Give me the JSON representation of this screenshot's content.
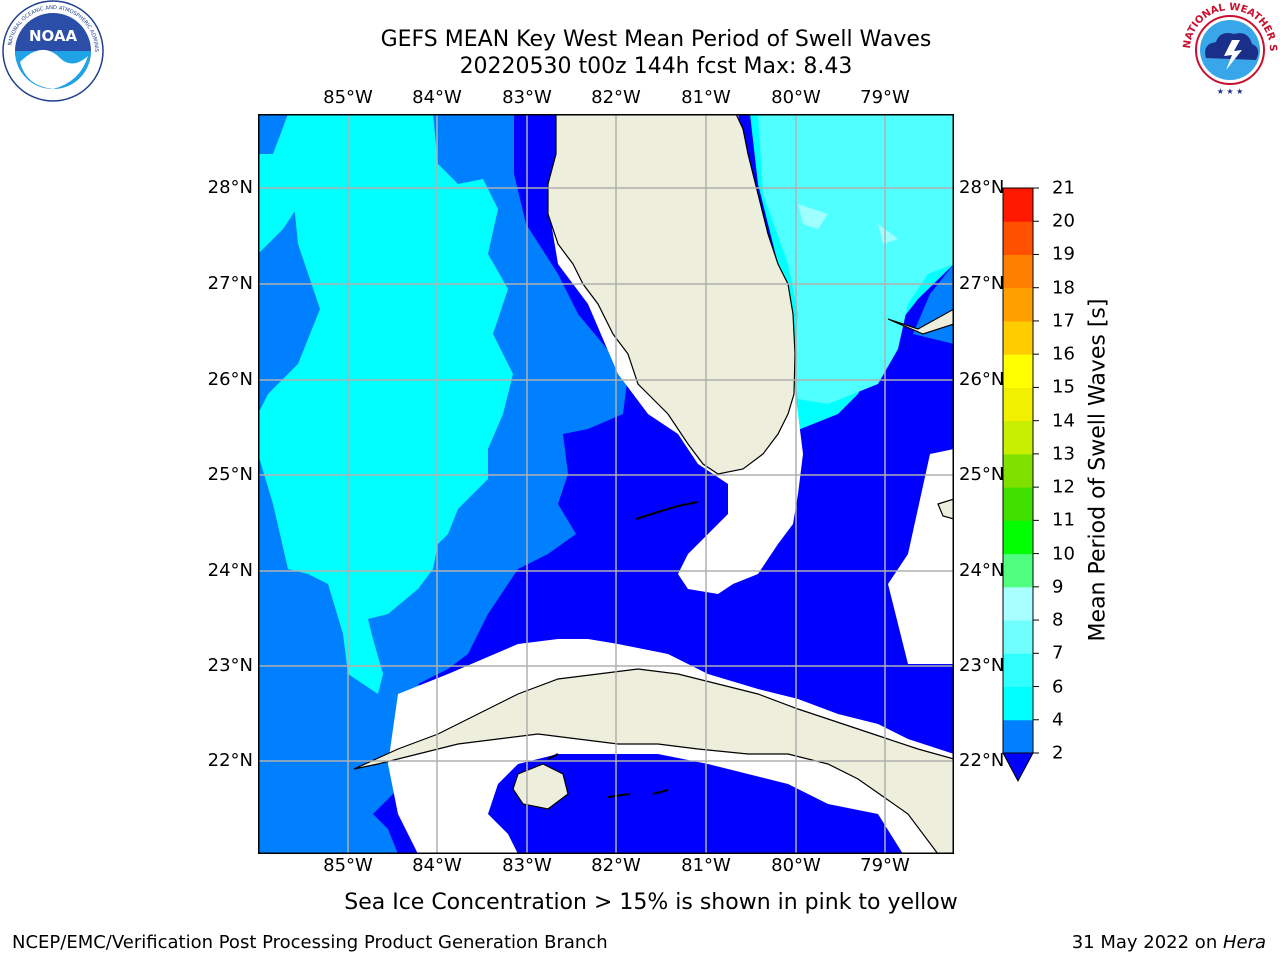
{
  "header": {
    "title_line1": "GEFS MEAN Key West Mean Period of Swell Waves",
    "title_line2": "20220530 t00z 144h fcst   Max: 8.43"
  },
  "logos": {
    "left": {
      "text": "NOAA",
      "ring_text": "NATIONAL OCEANIC AND ATMOSPHERIC ADMINISTRATION · U.S. DEPARTMENT OF COMMERCE"
    },
    "right": {
      "ring_text": "NATIONAL WEATHER SERVICE"
    }
  },
  "map": {
    "lon_labels": [
      "85°W",
      "84°W",
      "83°W",
      "82°W",
      "81°W",
      "80°W",
      "79°W"
    ],
    "lat_labels": [
      "28°N",
      "27°N",
      "26°N",
      "25°N",
      "24°N",
      "23°N",
      "22°N"
    ],
    "land_color": "#eeeedd",
    "grid_color": "#b0b0b0",
    "field_colors": {
      "2-4": "#0000ff",
      "4-6": "#0080ff",
      "6-7": "#00ffff",
      "7-8": "#50ffff",
      "8-9": "#a0ffff"
    }
  },
  "colorbar": {
    "label": "Mean Period of Swell Waves [s]",
    "ticks": [
      "2",
      "4",
      "6",
      "7",
      "8",
      "9",
      "10",
      "11",
      "12",
      "13",
      "14",
      "15",
      "16",
      "17",
      "18",
      "19",
      "20",
      "21"
    ],
    "colors": [
      "#0080ff",
      "#00ffff",
      "#30ffff",
      "#70ffff",
      "#a8ffff",
      "#50ff80",
      "#00ff00",
      "#40e000",
      "#80e000",
      "#c8ee00",
      "#f0f000",
      "#ffff00",
      "#ffcc00",
      "#ffa000",
      "#ff8000",
      "#ff5000",
      "#ff1800",
      "#ff0000"
    ],
    "under_color": "#0000ff"
  },
  "footnote": "Sea Ice Concentration > 15% is shown in pink to yellow",
  "credits": {
    "left": "NCEP/EMC/Verification Post Processing Product Generation Branch",
    "right_date": "31 May 2022 on ",
    "right_host": "Hera"
  }
}
